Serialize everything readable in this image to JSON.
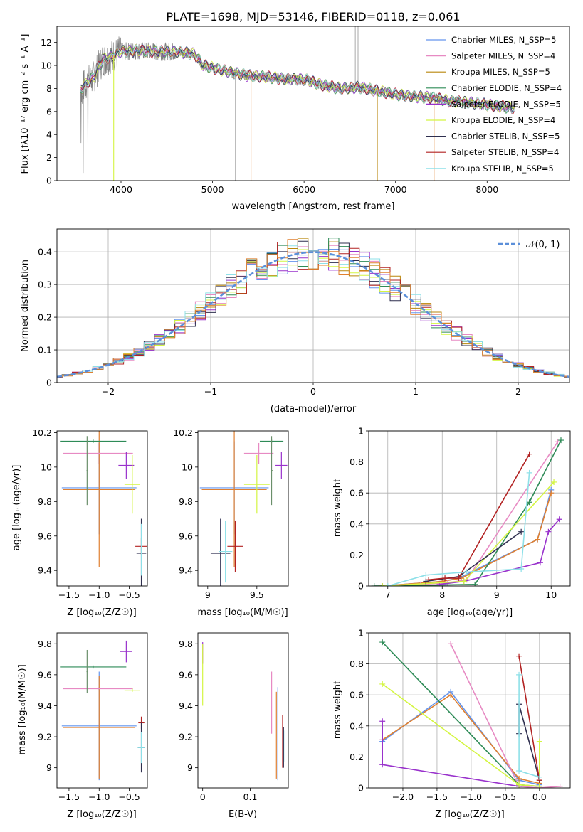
{
  "chart_data": [
    {
      "id": "spectrum",
      "type": "line",
      "title": "PLATE=1698, MJD=53146, FIBERID=0118, z=0.061",
      "xlabel": "wavelength [Angstrom, rest frame]",
      "ylabel": "Flux [fλ10⁻¹⁷ erg cm⁻² s⁻¹ A⁻¹]",
      "xlim": [
        3300,
        8900
      ],
      "ylim": [
        0,
        13.4
      ],
      "xticks": [
        4000,
        5000,
        6000,
        7000,
        8000
      ],
      "yticks": [
        0,
        2,
        4,
        6,
        8,
        10,
        12
      ],
      "continuum": [
        [
          3560,
          8.0
        ],
        [
          3700,
          9.0
        ],
        [
          3800,
          10.5
        ],
        [
          3900,
          10.8
        ],
        [
          4000,
          11.2
        ],
        [
          4200,
          11.3
        ],
        [
          4400,
          11.2
        ],
        [
          4600,
          11.2
        ],
        [
          4800,
          11.0
        ],
        [
          4900,
          10.0
        ],
        [
          5000,
          9.8
        ],
        [
          5200,
          9.4
        ],
        [
          5400,
          9.1
        ],
        [
          5600,
          9.0
        ],
        [
          5800,
          8.8
        ],
        [
          6000,
          8.8
        ],
        [
          6200,
          8.3
        ],
        [
          6400,
          8.0
        ],
        [
          6600,
          8.1
        ],
        [
          6800,
          7.8
        ],
        [
          7000,
          7.5
        ],
        [
          7200,
          7.3
        ],
        [
          7400,
          7.2
        ],
        [
          7600,
          6.9
        ],
        [
          7800,
          6.8
        ],
        [
          8000,
          6.6
        ],
        [
          8200,
          6.4
        ],
        [
          8300,
          6.3
        ]
      ],
      "legend": [
        {
          "name": "Chabrier MILES, N_SSP=5",
          "color": "#6495ed"
        },
        {
          "name": "Salpeter MILES, N_SSP=4",
          "color": "#e78ac3"
        },
        {
          "name": "Kroupa MILES, N_SSP=5",
          "color": "#b8860b"
        },
        {
          "name": "Chabrier ELODIE, N_SSP=4",
          "color": "#2e8b57"
        },
        {
          "name": "Salpeter ELODIE, N_SSP=5",
          "color": "#9932cc"
        },
        {
          "name": "Kroupa ELODIE, N_SSP=4",
          "color": "#d4f542"
        },
        {
          "name": "Chabrier STELIB, N_SSP=5",
          "color": "#2f2f4f"
        },
        {
          "name": "Salpeter STELIB, N_SSP=4",
          "color": "#b22222"
        },
        {
          "name": "Kroupa STELIB, N_SSP=5",
          "color": "#8ee0e8"
        }
      ],
      "data_color": "#808080"
    },
    {
      "id": "residuals",
      "type": "line",
      "xlabel": "(data-model)/error",
      "ylabel": "Normed distribution",
      "xlim": [
        -2.5,
        2.5
      ],
      "ylim": [
        0,
        0.47
      ],
      "xticks": [
        -2,
        -1,
        0,
        1,
        2
      ],
      "yticks": [
        0.0,
        0.1,
        0.2,
        0.3,
        0.4
      ],
      "grid": true,
      "legend_label": "𝒩(0, 1)",
      "gaussian_color": "#5b8fd9"
    },
    {
      "id": "age_vs_Z",
      "type": "scatter",
      "xlabel": "Z [log₁₀(Z/Z☉)]",
      "ylabel": "age  [log₁₀(age/yr)]",
      "xlim": [
        -1.7,
        -0.2
      ],
      "ylim": [
        9.31,
        10.21
      ],
      "xticks": [
        -1.5,
        -1.0,
        -0.5
      ],
      "xticklabels": [
        "−1.5",
        "−1.0",
        "−0.5"
      ],
      "yticks": [
        9.4,
        9.6,
        9.8,
        10.0,
        10.2
      ],
      "points": [
        {
          "x": -1.0,
          "y": 9.88,
          "xerr": 0.62,
          "yerr": 0.27,
          "color": "#6495ed"
        },
        {
          "x": -1.0,
          "y": 9.87,
          "xerr": 0.6,
          "yerr": 0.45,
          "color": "#e08030"
        },
        {
          "x": -1.02,
          "y": 10.08,
          "xerr": 0.58,
          "yerr": 0.06,
          "color": "#e78ac3"
        },
        {
          "x": -1.1,
          "y": 10.15,
          "xerr": 0.55,
          "yerr": 0.01,
          "color": "#2e8b57"
        },
        {
          "x": -1.2,
          "y": 9.98,
          "xerr": 0.01,
          "yerr": 0.2,
          "color": "#6a8f6a"
        },
        {
          "x": -0.55,
          "y": 10.01,
          "xerr": 0.13,
          "yerr": 0.08,
          "color": "#9932cc"
        },
        {
          "x": -0.45,
          "y": 9.9,
          "xerr": 0.13,
          "yerr": 0.17,
          "color": "#d4f542"
        },
        {
          "x": -0.3,
          "y": 9.54,
          "xerr": 0.1,
          "yerr": 0.05,
          "color": "#b22222"
        },
        {
          "x": -0.3,
          "y": 9.5,
          "xerr": 0.08,
          "yerr": 0.2,
          "color": "#2f2f4f"
        },
        {
          "x": -0.3,
          "y": 9.52,
          "xerr": 0.01,
          "yerr": 0.15,
          "color": "#8ee0e8"
        }
      ]
    },
    {
      "id": "age_vs_mass",
      "type": "scatter",
      "xlabel": "mass [log₁₀(M/M☉)]",
      "ylabel": "",
      "xlim": [
        8.9,
        9.82
      ],
      "ylim": [
        9.31,
        10.21
      ],
      "xticks": [
        9.0,
        9.5
      ],
      "yticks": [
        9.4,
        9.6,
        9.8,
        10.0,
        10.2
      ],
      "points": [
        {
          "x": 9.27,
          "y": 9.88,
          "xerr": 0.35,
          "yerr": 0.27,
          "color": "#6495ed"
        },
        {
          "x": 9.27,
          "y": 9.87,
          "xerr": 0.33,
          "yerr": 0.45,
          "color": "#e08030"
        },
        {
          "x": 9.52,
          "y": 10.08,
          "xerr": 0.15,
          "yerr": 0.06,
          "color": "#e78ac3"
        },
        {
          "x": 9.65,
          "y": 10.15,
          "xerr": 0.12,
          "yerr": 0.01,
          "color": "#2e8b57"
        },
        {
          "x": 9.65,
          "y": 9.98,
          "xerr": 0.01,
          "yerr": 0.2,
          "color": "#6a8f6a"
        },
        {
          "x": 9.75,
          "y": 10.01,
          "xerr": 0.06,
          "yerr": 0.08,
          "color": "#9932cc"
        },
        {
          "x": 9.5,
          "y": 9.9,
          "xerr": 0.13,
          "yerr": 0.17,
          "color": "#d4f542"
        },
        {
          "x": 9.28,
          "y": 9.54,
          "xerr": 0.08,
          "yerr": 0.15,
          "color": "#b22222"
        },
        {
          "x": 9.13,
          "y": 9.5,
          "xerr": 0.1,
          "yerr": 0.2,
          "color": "#2f2f4f"
        },
        {
          "x": 9.18,
          "y": 9.51,
          "xerr": 0.07,
          "yerr": 0.18,
          "color": "#8ee0e8"
        }
      ]
    },
    {
      "id": "weight_vs_age",
      "type": "line",
      "xlabel": "age  [log₁₀(age/yr)]",
      "ylabel": "mass weight",
      "xlim": [
        6.65,
        10.35
      ],
      "ylim": [
        0,
        1.0
      ],
      "xticks": [
        7,
        8,
        9,
        10
      ],
      "yticks": [
        0.0,
        0.2,
        0.4,
        0.6,
        0.8,
        1.0
      ],
      "grid": true,
      "series": [
        {
          "color": "#6495ed",
          "x": [
            6.9,
            8.0,
            8.3,
            9.75,
            10.0
          ],
          "y": [
            0.0,
            0.03,
            0.05,
            0.3,
            0.62
          ]
        },
        {
          "color": "#e08030",
          "x": [
            6.9,
            8.0,
            8.35,
            9.75,
            10.0
          ],
          "y": [
            0.0,
            0.03,
            0.05,
            0.3,
            0.6
          ]
        },
        {
          "color": "#e78ac3",
          "x": [
            7.6,
            8.1,
            8.45,
            10.12
          ],
          "y": [
            0.01,
            0.02,
            0.04,
            0.93
          ]
        },
        {
          "color": "#2e8b57",
          "x": [
            6.75,
            8.6,
            9.6,
            10.18
          ],
          "y": [
            0.0,
            0.01,
            0.54,
            0.94
          ]
        },
        {
          "color": "#9932cc",
          "x": [
            7.95,
            8.4,
            9.8,
            9.95,
            10.15
          ],
          "y": [
            0.01,
            0.03,
            0.15,
            0.35,
            0.43
          ]
        },
        {
          "color": "#d4f542",
          "x": [
            6.9,
            8.4,
            10.05
          ],
          "y": [
            0.0,
            0.03,
            0.67
          ]
        },
        {
          "color": "#2f2f4f",
          "x": [
            7.7,
            8.3,
            9.45
          ],
          "y": [
            0.03,
            0.06,
            0.35
          ]
        },
        {
          "color": "#b22222",
          "x": [
            7.75,
            8.05,
            8.3,
            9.6
          ],
          "y": [
            0.04,
            0.05,
            0.05,
            0.85
          ]
        },
        {
          "color": "#8ee0e8",
          "x": [
            7.0,
            7.7,
            8.45,
            9.45,
            9.6
          ],
          "y": [
            0.0,
            0.07,
            0.09,
            0.11,
            0.73
          ]
        }
      ]
    },
    {
      "id": "mass_vs_Z",
      "type": "scatter",
      "xlabel": "Z [log₁₀(Z/Z☉)]",
      "ylabel": "mass [log₁₀(M/M☉)]",
      "xlim": [
        -1.7,
        -0.2
      ],
      "ylim": [
        8.87,
        9.87
      ],
      "xticks": [
        -1.5,
        -1.0,
        -0.5
      ],
      "xticklabels": [
        "−1.5",
        "−1.0",
        "−0.5"
      ],
      "yticks": [
        9.0,
        9.2,
        9.4,
        9.6,
        9.8
      ],
      "points": [
        {
          "x": -1.0,
          "y": 9.27,
          "xerr": 0.62,
          "yerr": 0.35,
          "color": "#6495ed"
        },
        {
          "x": -1.0,
          "y": 9.26,
          "xerr": 0.6,
          "yerr": 0.33,
          "color": "#e08030"
        },
        {
          "x": -1.02,
          "y": 9.51,
          "xerr": 0.58,
          "yerr": 0.01,
          "color": "#e78ac3"
        },
        {
          "x": -1.1,
          "y": 9.65,
          "xerr": 0.55,
          "yerr": 0.01,
          "color": "#2e8b57"
        },
        {
          "x": -1.2,
          "y": 9.62,
          "xerr": 0.01,
          "yerr": 0.14,
          "color": "#6a8f6a"
        },
        {
          "x": -0.55,
          "y": 9.75,
          "xerr": 0.1,
          "yerr": 0.07,
          "color": "#9932cc"
        },
        {
          "x": -0.45,
          "y": 9.5,
          "xerr": 0.13,
          "yerr": 0.01,
          "color": "#d4f542"
        },
        {
          "x": -0.3,
          "y": 9.29,
          "xerr": 0.05,
          "yerr": 0.04,
          "color": "#b22222"
        },
        {
          "x": -0.3,
          "y": 9.13,
          "xerr": 0.06,
          "yerr": 0.16,
          "color": "#2f2f4f"
        },
        {
          "x": -0.3,
          "y": 9.13,
          "xerr": 0.06,
          "yerr": 0.1,
          "color": "#8ee0e8"
        }
      ]
    },
    {
      "id": "mass_vs_ebv",
      "type": "scatter",
      "xlabel": "E(B-V)",
      "ylabel": "",
      "xlim": [
        -0.01,
        0.18
      ],
      "ylim": [
        8.87,
        9.87
      ],
      "xticks": [
        0.0,
        0.1
      ],
      "yticks": [
        9.0,
        9.2,
        9.4,
        9.6,
        9.8
      ],
      "points": [
        {
          "x": 0.0,
          "y": 9.74,
          "yerr": 0.07,
          "color": "#9932cc"
        },
        {
          "x": 0.0,
          "y": 9.6,
          "yerr": 0.2,
          "color": "#d4f542"
        },
        {
          "x": 0.145,
          "y": 9.42,
          "yerr": 0.2,
          "color": "#e78ac3"
        },
        {
          "x": 0.155,
          "y": 9.21,
          "yerr": 0.28,
          "color": "#e08030"
        },
        {
          "x": 0.158,
          "y": 9.22,
          "yerr": 0.3,
          "color": "#6495ed"
        },
        {
          "x": 0.168,
          "y": 9.17,
          "yerr": 0.17,
          "color": "#b22222"
        },
        {
          "x": 0.17,
          "y": 9.13,
          "yerr": 0.13,
          "color": "#2f2f4f"
        },
        {
          "x": 0.173,
          "y": 9.14,
          "yerr": 0.1,
          "color": "#8ee0e8"
        }
      ]
    },
    {
      "id": "weight_vs_Z",
      "type": "line",
      "xlabel": "Z [log₁₀(Z/Z☉)]",
      "ylabel": "mass weight",
      "xlim": [
        -2.5,
        0.45
      ],
      "ylim": [
        0,
        1.0
      ],
      "xticks": [
        -2.0,
        -1.5,
        -1.0,
        -0.5,
        0.0
      ],
      "xticklabels": [
        "−2.0",
        "−1.5",
        "−1.0",
        "−0.5",
        "0.0"
      ],
      "yticks": [
        0.0,
        0.2,
        0.4,
        0.6,
        0.8,
        1.0
      ],
      "grid": true,
      "series": [
        {
          "color": "#6495ed",
          "x": [
            -2.3,
            -1.3,
            -0.3,
            0.0
          ],
          "y": [
            0.3,
            0.62,
            0.05,
            0.02
          ]
        },
        {
          "color": "#e08030",
          "x": [
            -2.3,
            -1.3,
            -0.3,
            0.0
          ],
          "y": [
            0.31,
            0.6,
            0.06,
            0.03
          ]
        },
        {
          "color": "#e78ac3",
          "x": [
            -1.3,
            -0.3,
            0.0,
            0.3
          ],
          "y": [
            0.93,
            0.01,
            0.0,
            0.01
          ]
        },
        {
          "color": "#2e8b57",
          "x": [
            -2.3,
            -0.3,
            0.0
          ],
          "y": [
            0.94,
            0.02,
            0.01
          ]
        },
        {
          "color": "#9932cc",
          "x": [
            -2.3,
            -2.3,
            -2.3,
            -0.3
          ],
          "y": [
            0.43,
            0.31,
            0.15,
            0.01
          ]
        },
        {
          "color": "#d4f542",
          "x": [
            -2.3,
            -0.3,
            0.0,
            0.0
          ],
          "y": [
            0.67,
            0.02,
            0.01,
            0.3
          ]
        },
        {
          "color": "#2f2f4f",
          "x": [
            -0.3,
            -0.3,
            0.0
          ],
          "y": [
            0.35,
            0.54,
            0.05
          ]
        },
        {
          "color": "#b22222",
          "x": [
            -0.3,
            0.0
          ],
          "y": [
            0.85,
            0.05
          ]
        },
        {
          "color": "#8ee0e8",
          "x": [
            -0.3,
            -0.3,
            0.0
          ],
          "y": [
            0.73,
            0.11,
            0.07
          ]
        }
      ]
    }
  ]
}
